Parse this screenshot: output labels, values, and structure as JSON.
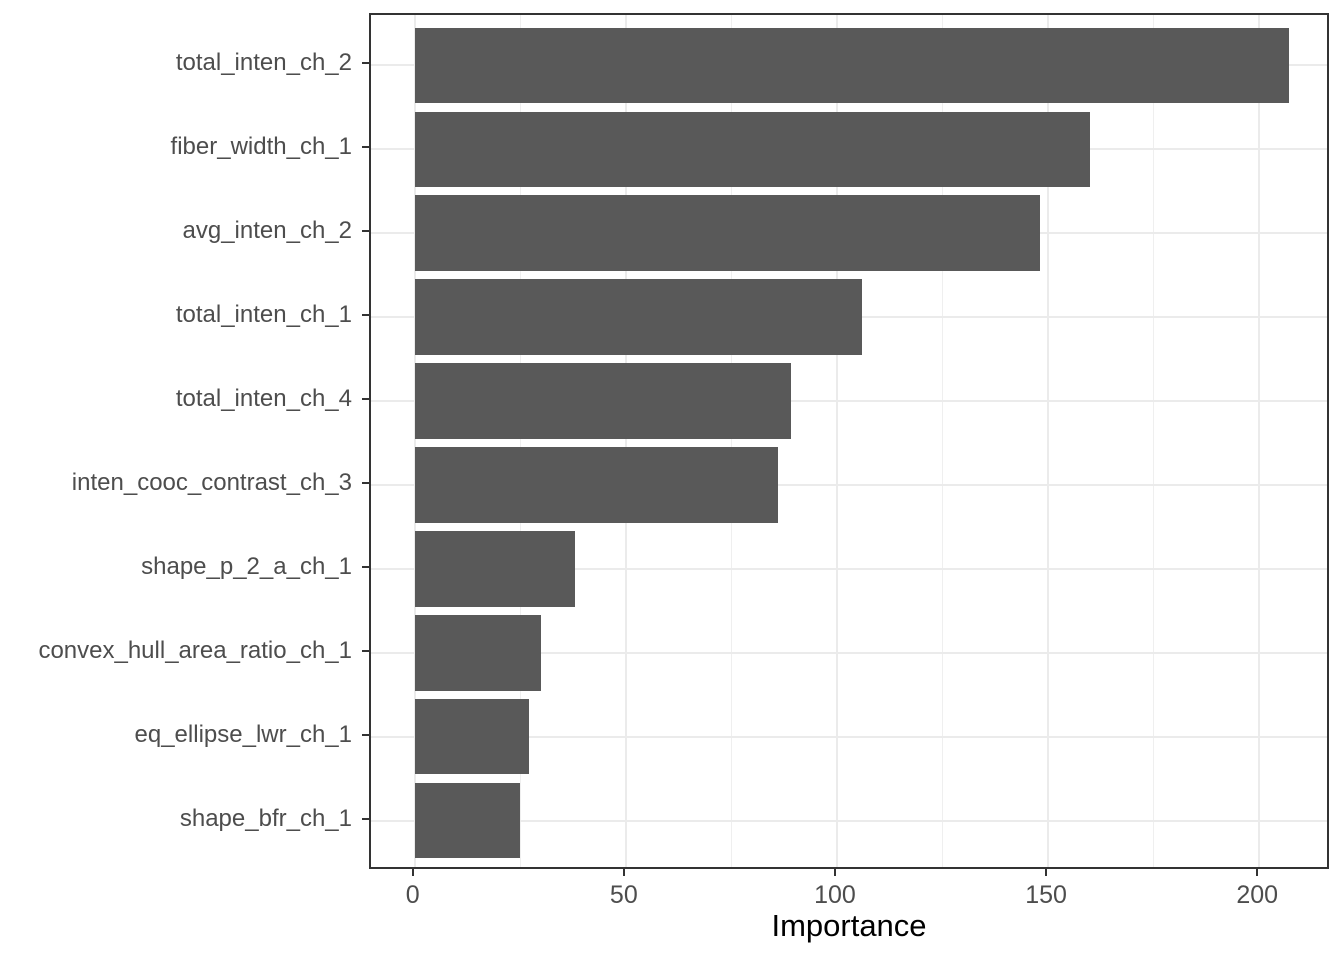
{
  "chart_data": {
    "type": "bar",
    "orientation": "horizontal",
    "title": "",
    "xlabel": "Importance",
    "ylabel": "",
    "categories": [
      "total_inten_ch_2",
      "fiber_width_ch_1",
      "avg_inten_ch_2",
      "total_inten_ch_1",
      "total_inten_ch_4",
      "inten_cooc_contrast_ch_3",
      "shape_p_2_a_ch_1",
      "convex_hull_area_ratio_ch_1",
      "eq_ellipse_lwr_ch_1",
      "shape_bfr_ch_1"
    ],
    "values": [
      207,
      160,
      148,
      106,
      89,
      86,
      38,
      30,
      27,
      25
    ],
    "x_ticks": [
      0,
      50,
      100,
      150,
      200
    ],
    "x_minor_ticks": [
      25,
      75,
      125,
      175
    ],
    "xlim": [
      -10.35,
      217.0
    ],
    "grid": "vertical major+minor, horizontal major at category centers",
    "legend": "none",
    "colors": {
      "bar_fill": "#595959",
      "grid_major": "#EBEBEB",
      "grid_minor": "#EFEFEF",
      "panel_border": "#333333",
      "tick_mark": "#333333",
      "axis_text": "#4D4D4D",
      "axis_title": "#000000",
      "background": "#FFFFFF"
    }
  }
}
